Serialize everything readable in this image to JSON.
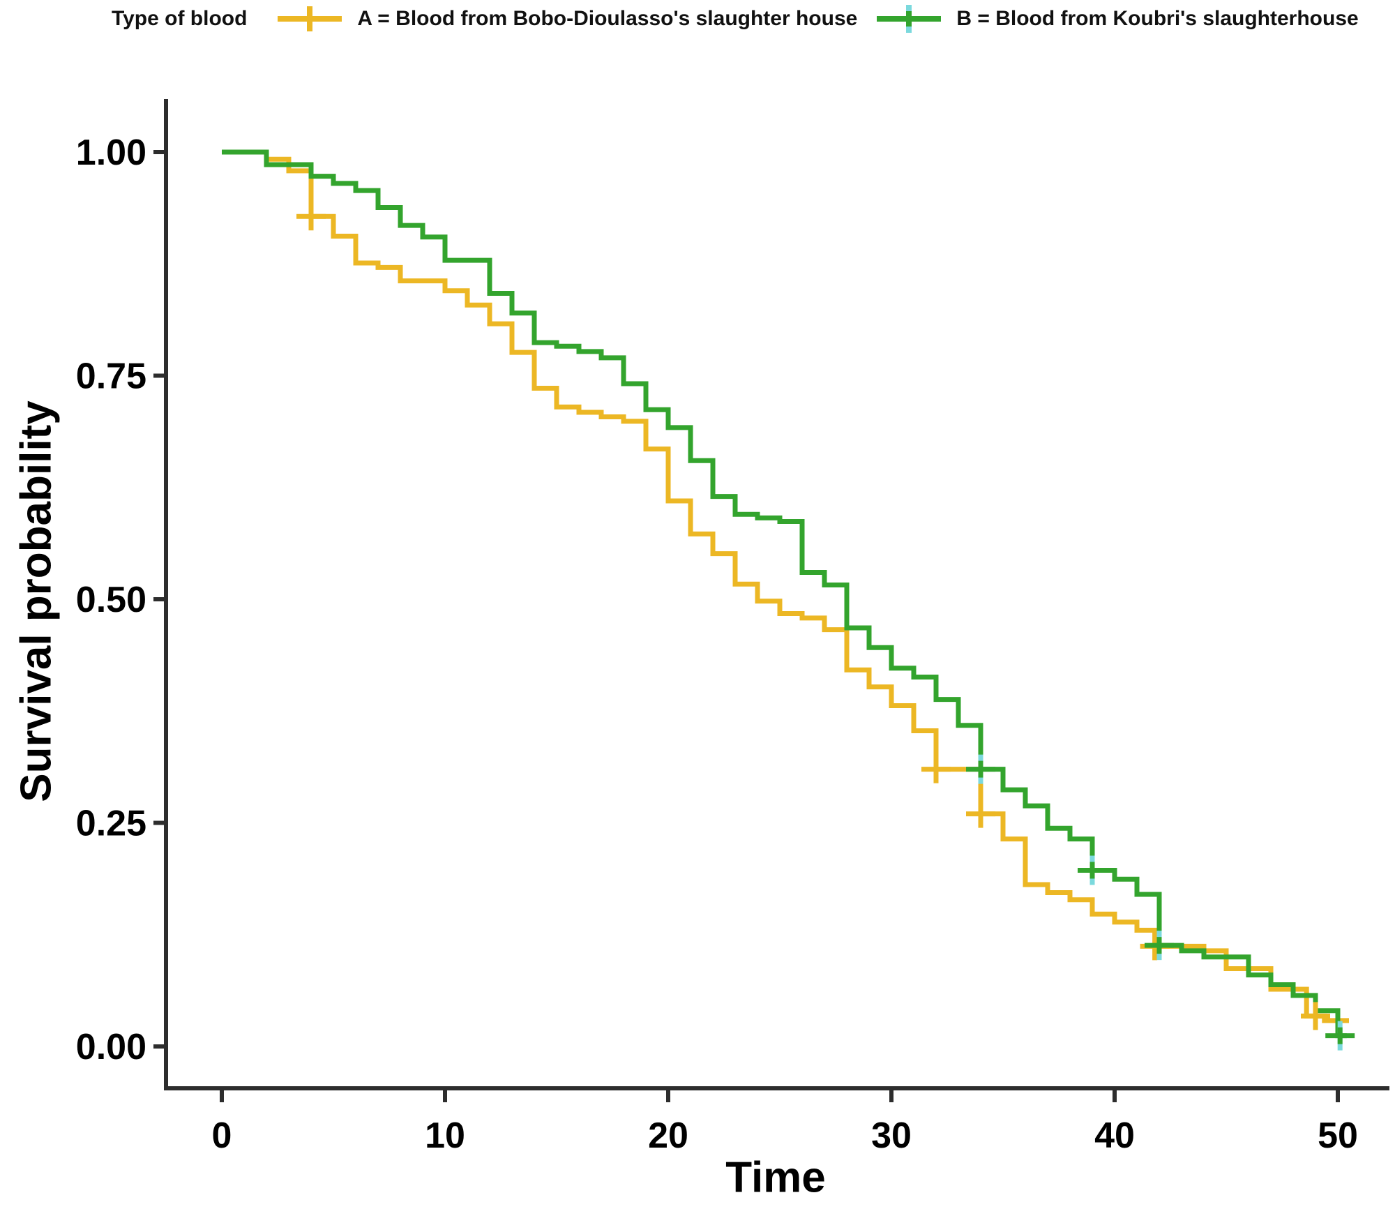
{
  "legend": {
    "title": "Type of blood",
    "items": [
      {
        "id": "A",
        "label": "A = Blood from Bobo-Dioulasso's slaughter house",
        "color": "#ECB724"
      },
      {
        "id": "B",
        "label": "B = Blood from Koubri's slaughterhouse",
        "color": "#33A42D"
      }
    ]
  },
  "chart_data": {
    "type": "line",
    "subtype": "kaplan-meier-step",
    "title": "",
    "xlabel": "Time",
    "ylabel": "Survival probability",
    "xlim": [
      0,
      50
    ],
    "ylim": [
      0,
      1
    ],
    "xticks": [
      "0",
      "10",
      "20",
      "30",
      "40",
      "50"
    ],
    "yticks": [
      "0.00",
      "0.25",
      "0.50",
      "0.75",
      "1.00"
    ],
    "grid": false,
    "legend_position": "top",
    "series": [
      {
        "name": "A = Blood from Bobo-Dioulasso's slaughter house",
        "color": "#ECB724",
        "end_time": 50.5,
        "steps": [
          [
            0,
            1.0
          ],
          [
            2,
            0.992
          ],
          [
            3,
            0.979
          ],
          [
            4,
            0.928
          ],
          [
            5,
            0.906
          ],
          [
            6,
            0.876
          ],
          [
            7,
            0.871
          ],
          [
            8,
            0.856
          ],
          [
            10,
            0.845
          ],
          [
            11,
            0.829
          ],
          [
            12,
            0.808
          ],
          [
            13,
            0.776
          ],
          [
            14,
            0.736
          ],
          [
            15,
            0.715
          ],
          [
            16,
            0.709
          ],
          [
            17,
            0.704
          ],
          [
            18,
            0.699
          ],
          [
            19,
            0.668
          ],
          [
            20,
            0.61
          ],
          [
            21,
            0.573
          ],
          [
            22,
            0.551
          ],
          [
            23,
            0.517
          ],
          [
            24,
            0.498
          ],
          [
            25,
            0.484
          ],
          [
            26,
            0.479
          ],
          [
            27,
            0.466
          ],
          [
            28,
            0.421
          ],
          [
            29,
            0.402
          ],
          [
            30,
            0.381
          ],
          [
            31,
            0.353
          ],
          [
            32,
            0.31
          ],
          [
            34,
            0.26
          ],
          [
            35,
            0.232
          ],
          [
            36,
            0.181
          ],
          [
            37,
            0.172
          ],
          [
            38,
            0.164
          ],
          [
            39,
            0.148
          ],
          [
            40,
            0.139
          ],
          [
            41,
            0.13
          ],
          [
            42,
            0.112
          ],
          [
            44,
            0.107
          ],
          [
            45,
            0.087
          ],
          [
            47,
            0.064
          ],
          [
            48.6,
            0.034
          ],
          [
            49.4,
            0.029
          ]
        ],
        "censored": [
          [
            4,
            0.928
          ],
          [
            32,
            0.31
          ],
          [
            34,
            0.26
          ],
          [
            41.8,
            0.112
          ],
          [
            49,
            0.034
          ]
        ]
      },
      {
        "name": "B = Blood from Koubri's slaughterhouse",
        "color": "#33A42D",
        "censor_accent": "#7BD9DD",
        "end_time": 50.4,
        "steps": [
          [
            0,
            1.0
          ],
          [
            2,
            0.986
          ],
          [
            4,
            0.973
          ],
          [
            5,
            0.965
          ],
          [
            6,
            0.957
          ],
          [
            7,
            0.938
          ],
          [
            8,
            0.918
          ],
          [
            9,
            0.905
          ],
          [
            10,
            0.879
          ],
          [
            12,
            0.842
          ],
          [
            13,
            0.82
          ],
          [
            14,
            0.787
          ],
          [
            15,
            0.783
          ],
          [
            16,
            0.777
          ],
          [
            17,
            0.77
          ],
          [
            18,
            0.741
          ],
          [
            19,
            0.712
          ],
          [
            20,
            0.692
          ],
          [
            21,
            0.655
          ],
          [
            22,
            0.615
          ],
          [
            23,
            0.595
          ],
          [
            24,
            0.591
          ],
          [
            25,
            0.587
          ],
          [
            26,
            0.53
          ],
          [
            27,
            0.516
          ],
          [
            28,
            0.468
          ],
          [
            29,
            0.446
          ],
          [
            30,
            0.423
          ],
          [
            31,
            0.413
          ],
          [
            32,
            0.388
          ],
          [
            33,
            0.359
          ],
          [
            34,
            0.31
          ],
          [
            35,
            0.287
          ],
          [
            36,
            0.269
          ],
          [
            37,
            0.244
          ],
          [
            38,
            0.232
          ],
          [
            39,
            0.197
          ],
          [
            40,
            0.187
          ],
          [
            41,
            0.17
          ],
          [
            42,
            0.113
          ],
          [
            43,
            0.107
          ],
          [
            44,
            0.1
          ],
          [
            46,
            0.08
          ],
          [
            47,
            0.069
          ],
          [
            48,
            0.057
          ],
          [
            49,
            0.04
          ],
          [
            50,
            0.012
          ]
        ],
        "censored": [
          [
            34,
            0.31
          ],
          [
            39,
            0.197
          ],
          [
            42,
            0.113
          ],
          [
            50.1,
            0.012
          ]
        ]
      }
    ]
  },
  "colors": {
    "series_a": "#ECB724",
    "series_b": "#33A42D",
    "censor_accent_b": "#7BD9DD",
    "axis": "#2D2D2D",
    "text": "#000000",
    "background": "#FFFFFF"
  }
}
